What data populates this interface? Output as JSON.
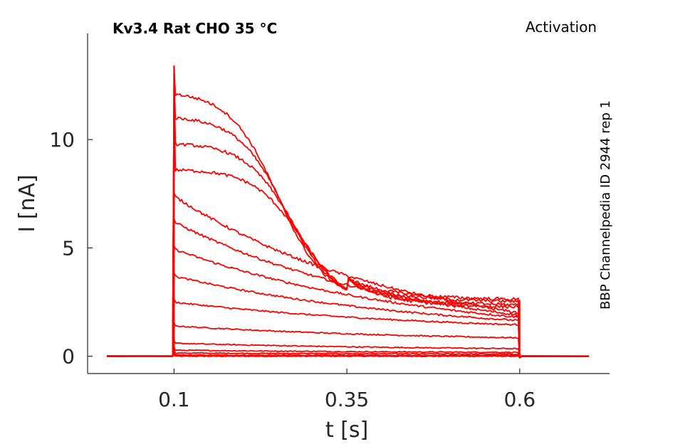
{
  "chart_data": {
    "type": "line",
    "title": "Kv3.4  Rat  CHO  35 °C",
    "protocol": "Activation",
    "source": "BBP Channelpedia ID 2944 rep 1",
    "xlabel": "t [s]",
    "ylabel": "I [nA]",
    "xlim": [
      -0.025,
      0.73
    ],
    "ylim": [
      -0.8,
      14.9
    ],
    "xticks": [
      0.1,
      0.35,
      0.6
    ],
    "xtick_labels": [
      "0.1",
      "0.35",
      "0.6"
    ],
    "yticks": [
      0,
      5,
      10
    ],
    "ytick_labels": [
      "0",
      "5",
      "10"
    ],
    "grid": false,
    "legend": "none",
    "line_color": "#ff0000",
    "pulse_start_s": 0.1,
    "pulse_end_s": 0.6,
    "record_start_s": 0.003,
    "record_end_s": 0.7,
    "series": [
      {
        "peak_nA": 0.0,
        "end_nA": 0.0,
        "fast": false
      },
      {
        "peak_nA": 0.05,
        "end_nA": 0.04,
        "fast": false
      },
      {
        "peak_nA": 0.15,
        "end_nA": 0.1,
        "fast": false
      },
      {
        "peak_nA": 0.28,
        "end_nA": 0.18,
        "fast": false
      },
      {
        "peak_nA": 0.6,
        "end_nA": 0.35,
        "fast": false
      },
      {
        "peak_nA": 1.4,
        "end_nA": 0.85,
        "fast": false
      },
      {
        "peak_nA": 2.5,
        "end_nA": 1.45,
        "fast": false
      },
      {
        "peak_nA": 3.7,
        "end_nA": 1.65,
        "fast": false
      },
      {
        "peak_nA": 4.95,
        "end_nA": 1.8,
        "fast": false
      },
      {
        "peak_nA": 6.2,
        "end_nA": 1.9,
        "fast": false
      },
      {
        "peak_nA": 7.4,
        "end_nA": 2.0,
        "fast": false
      },
      {
        "peak_nA": 8.6,
        "end_nA": 2.2,
        "fast": true
      },
      {
        "peak_nA": 9.8,
        "end_nA": 2.3,
        "fast": true
      },
      {
        "peak_nA": 11.0,
        "end_nA": 2.45,
        "fast": true
      },
      {
        "peak_nA": 12.1,
        "end_nA": 2.55,
        "fast": true
      }
    ],
    "onset_spike_nA": 13.4
  }
}
